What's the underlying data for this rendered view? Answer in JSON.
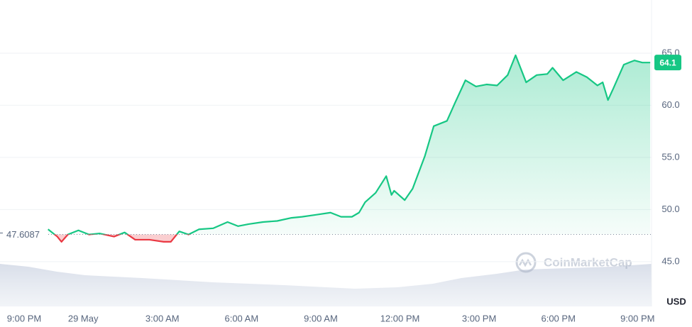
{
  "chart_data": {
    "type": "line",
    "x": [
      1.67,
      2.02,
      2.18,
      2.42,
      2.82,
      3.22,
      3.63,
      4.17,
      4.57,
      4.97,
      5.51,
      6.05,
      6.32,
      6.64,
      6.99,
      7.39,
      7.93,
      8.47,
      8.87,
      9.27,
      9.81,
      10.35,
      10.89,
      11.29,
      11.84,
      12.37,
      12.77,
      13.18,
      13.45,
      13.68,
      14.08,
      14.48,
      14.68,
      14.78,
      15.18,
      15.48,
      15.94,
      16.28,
      16.78,
      17.08,
      17.48,
      17.88,
      18.28,
      18.68,
      19.08,
      19.38,
      19.78,
      20.18,
      20.58,
      20.78,
      21.18,
      21.68,
      22.08,
      22.48,
      22.68,
      22.88,
      23.08,
      23.48,
      23.88,
      24.18,
      24.48
    ],
    "series": [
      {
        "name": "Price",
        "values": [
          48.1,
          47.4,
          46.9,
          47.6,
          48.0,
          47.6,
          47.7,
          47.4,
          47.8,
          47.1,
          47.1,
          46.9,
          46.9,
          47.9,
          47.6,
          48.1,
          48.2,
          48.8,
          48.4,
          48.6,
          48.8,
          48.9,
          49.2,
          49.3,
          49.5,
          49.7,
          49.3,
          49.3,
          49.7,
          50.7,
          51.6,
          53.2,
          51.4,
          51.8,
          50.9,
          52.0,
          55.1,
          58.0,
          58.5,
          60.2,
          62.4,
          61.8,
          62.0,
          61.9,
          62.9,
          64.8,
          62.2,
          62.9,
          63.0,
          63.6,
          62.4,
          63.2,
          62.7,
          61.9,
          62.2,
          60.5,
          61.6,
          63.9,
          64.3,
          64.1,
          64.1
        ]
      }
    ],
    "up_color": "#16c784",
    "down_color": "#ea3943",
    "baseline": 47.6087,
    "last_value": 64.1,
    "ylim": [
      40.7,
      70.1
    ],
    "yticks": [
      {
        "value": 45,
        "label": "45.0"
      },
      {
        "value": 50,
        "label": "50.0"
      },
      {
        "value": 55,
        "label": "55.0"
      },
      {
        "value": 60,
        "label": "60.0"
      },
      {
        "value": 65,
        "label": "65.0"
      }
    ],
    "xlim": [
      -0.15,
      24.53
    ],
    "xticks": [
      {
        "value": 0,
        "label": "9:00 PM"
      },
      {
        "value": 3,
        "label": "29 May"
      },
      {
        "value": 6,
        "label": "3:00 AM"
      },
      {
        "value": 9,
        "label": "6:00 AM"
      },
      {
        "value": 12,
        "label": "9:00 AM"
      },
      {
        "value": 15,
        "label": "12:00 PM"
      },
      {
        "value": 18,
        "label": "3:00 PM"
      },
      {
        "value": 21,
        "label": "6:00 PM"
      },
      {
        "value": 24,
        "label": "9:00 PM"
      }
    ],
    "currency": "USD",
    "watermark": "CoinMarketCap",
    "grid": true
  }
}
